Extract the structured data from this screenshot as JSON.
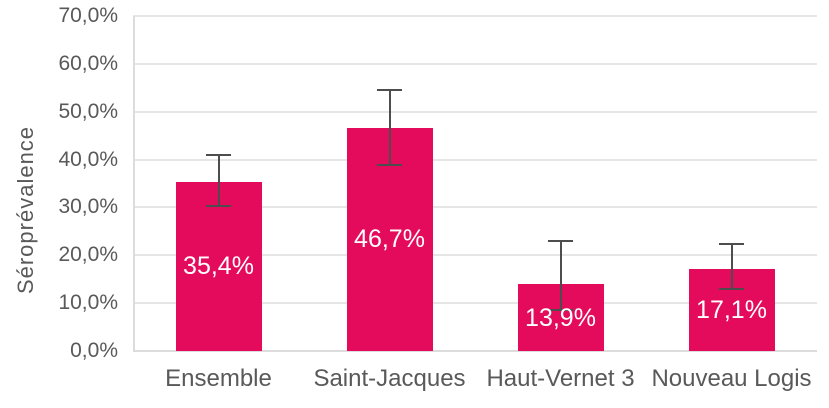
{
  "chart_data": {
    "type": "bar",
    "title": "",
    "xlabel": "",
    "ylabel": "Séroprévalence",
    "categories": [
      "Ensemble",
      "Saint-Jacques",
      "Haut-Vernet 3",
      "Nouveau Logis"
    ],
    "values": [
      35.4,
      46.7,
      13.9,
      17.1
    ],
    "value_labels": [
      "35,4%",
      "46,7%",
      "13,9%",
      "17,1%"
    ],
    "error_bars": {
      "ci_low": [
        30.2,
        38.9,
        8.5,
        13.0
      ],
      "ci_high": [
        41.0,
        54.6,
        22.9,
        22.4
      ]
    },
    "ylim": [
      0,
      70
    ],
    "ytick_step": 10,
    "ytick_labels": [
      "0,0%",
      "10,0%",
      "20,0%",
      "30,0%",
      "40,0%",
      "50,0%",
      "60,0%",
      "70,0%"
    ],
    "grid": true,
    "legend": false,
    "colors": {
      "bar": "#E40B5C",
      "data_label": "#FFFFFF",
      "axis_text": "#595959",
      "gridline": "#E6E6E6",
      "axis_line": "#DCDCDC",
      "error_bar": "#4D4D4D",
      "background": "#FFFFFF"
    }
  }
}
